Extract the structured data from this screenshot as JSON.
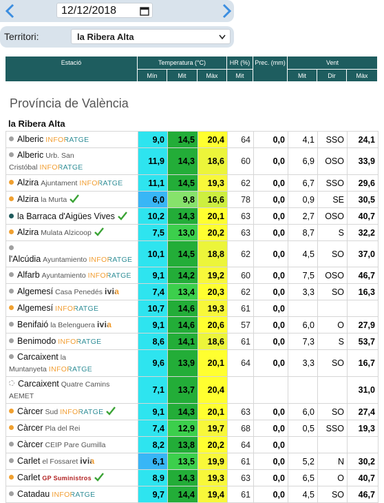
{
  "date": "12/12/2018",
  "territory": {
    "label": "Territori:",
    "selected": "la Ribera Alta"
  },
  "table": {
    "headers": {
      "station": "Estació",
      "temperature": "Temperatura (°C)",
      "humidity": "HR (%)",
      "precipitation": "Prec. (mm)",
      "wind": "Vent"
    },
    "subheaders": [
      "Mín",
      "Mit",
      "Màx",
      "Mit",
      "Mit",
      "Dir",
      "Màx"
    ],
    "province": "Província de València",
    "region": "la Ribera Alta",
    "rows": [
      {
        "dot": "#a0a0a0",
        "name": "Alberic",
        "brand": "INFORATGE",
        "min": "9,0",
        "mit": "14,5",
        "max": "20,4",
        "hr": "64",
        "prec": "0,0",
        "wind_mit": "4,1",
        "wind_dir": "SSO",
        "wind_max": "24,1"
      },
      {
        "dot": "#a0a0a0",
        "name": "Alberic",
        "sub": "Urb. San Cristóbal",
        "brand": "INFORATGE",
        "min": "11,9",
        "mit": "14,3",
        "max": "18,6",
        "hr": "60",
        "prec": "0,0",
        "wind_mit": "6,9",
        "wind_dir": "OSO",
        "wind_max": "33,9"
      },
      {
        "dot": "#f0a030",
        "name": "Alzira",
        "sub": "Ajuntament",
        "brand": "INFORATGE",
        "min": "11,1",
        "mit": "14,5",
        "max": "19,3",
        "hr": "62",
        "prec": "0,0",
        "wind_mit": "6,7",
        "wind_dir": "SSO",
        "wind_max": "29,6"
      },
      {
        "dot": "#f0a030",
        "name": "Alzira",
        "sub": "la Murta",
        "verified": true,
        "min": "6,0",
        "mit": "9,8",
        "max": "16,6",
        "hr": "78",
        "prec": "0,0",
        "wind_mit": "0,9",
        "wind_dir": "SE",
        "wind_max": "30,5"
      },
      {
        "dot": "#1f5a5c",
        "name": "la Barraca d'Aigües Vives",
        "verified": true,
        "min": "10,2",
        "mit": "14,3",
        "max": "20,1",
        "hr": "63",
        "prec": "0,0",
        "wind_mit": "2,7",
        "wind_dir": "OSO",
        "wind_max": "40,7"
      },
      {
        "dot": "#f0a030",
        "name": "Alzira",
        "sub": "Mulata Alzicoop",
        "verified": true,
        "min": "7,5",
        "mit": "13,0",
        "max": "20,2",
        "hr": "63",
        "prec": "0,0",
        "wind_mit": "8,7",
        "wind_dir": "S",
        "wind_max": "32,2"
      },
      {
        "dot": "#a0a0a0",
        "name": "l'Alcúdia",
        "sub": "Ayuntamiento",
        "brand": "INFORATGE",
        "min": "10,1",
        "mit": "14,5",
        "max": "18,8",
        "hr": "62",
        "prec": "0,0",
        "wind_mit": "4,5",
        "wind_dir": "SO",
        "wind_max": "37,0"
      },
      {
        "dot": "#a0a0a0",
        "name": "Alfarb",
        "sub": "Ayuntamiento",
        "brand": "INFORATGE",
        "min": "9,1",
        "mit": "14,2",
        "max": "19,2",
        "hr": "60",
        "prec": "0,0",
        "wind_mit": "7,5",
        "wind_dir": "OSO",
        "wind_max": "46,7"
      },
      {
        "dot": "#a0a0a0",
        "name": "Algemesí",
        "sub": "Casa Penedés",
        "brand": "ivia",
        "min": "7,4",
        "mit": "13,4",
        "max": "20,3",
        "hr": "62",
        "prec": "0,0",
        "wind_mit": "3,3",
        "wind_dir": "SO",
        "wind_max": "16,3"
      },
      {
        "dot": "#f0a030",
        "name": "Algemesí",
        "brand": "INFORATGE",
        "min": "10,7",
        "mit": "14,6",
        "max": "19,3",
        "hr": "61",
        "prec": "0,0"
      },
      {
        "dot": "#a0a0a0",
        "name": "Benifaió",
        "sub": "la Belenguera",
        "brand": "ivia",
        "min": "9,1",
        "mit": "14,6",
        "max": "20,6",
        "hr": "57",
        "prec": "0,0",
        "wind_mit": "6,0",
        "wind_dir": "O",
        "wind_max": "27,9"
      },
      {
        "dot": "#a0a0a0",
        "name": "Benimodo",
        "brand": "INFORATGE",
        "min": "8,6",
        "mit": "14,1",
        "max": "18,6",
        "hr": "61",
        "prec": "0,0",
        "wind_mit": "7,3",
        "wind_dir": "S",
        "wind_max": "53,7"
      },
      {
        "dot": "#a0a0a0",
        "name": "Carcaixent",
        "sub": "la Muntanyeta",
        "brand": "INFORATGE",
        "min": "9,6",
        "mit": "13,9",
        "max": "20,1",
        "hr": "64",
        "prec": "0,0",
        "wind_mit": "3,3",
        "wind_dir": "SO",
        "wind_max": "16,7"
      },
      {
        "dot": "none",
        "name": "Carcaixent",
        "sub": "Quatre Camins AEMET",
        "min": "7,1",
        "mit": "13,7",
        "max": "20,4",
        "wind_max": "31,0"
      },
      {
        "dot": "#f0a030",
        "name": "Càrcer",
        "sub": "Sud",
        "brand": "INFORATGE",
        "verified": true,
        "min": "9,1",
        "mit": "14,3",
        "max": "20,1",
        "hr": "63",
        "prec": "0,0",
        "wind_mit": "6,0",
        "wind_dir": "SO",
        "wind_max": "27,4"
      },
      {
        "dot": "#f0a030",
        "name": "Càrcer",
        "sub": "Pla del Rei",
        "min": "7,4",
        "mit": "12,9",
        "max": "19,7",
        "hr": "68",
        "prec": "0,0",
        "wind_mit": "0,5",
        "wind_dir": "SSO",
        "wind_max": "19,3"
      },
      {
        "dot": "#a0a0a0",
        "name": "Càrcer",
        "sub": "CEIP Pare Gumilla",
        "min": "8,2",
        "mit": "13,8",
        "max": "20,2",
        "hr": "64",
        "prec": "0,0"
      },
      {
        "dot": "#a0a0a0",
        "name": "Carlet",
        "sub": "el Fossaret",
        "brand": "ivia",
        "min": "6,1",
        "mit": "13,5",
        "max": "19,9",
        "hr": "61",
        "prec": "0,0",
        "wind_mit": "5,2",
        "wind_dir": "N",
        "wind_max": "30,2"
      },
      {
        "dot": "#f0a030",
        "name": "Carlet",
        "brand": "GP Suministros",
        "verified": true,
        "min": "8,9",
        "mit": "14,3",
        "max": "19,3",
        "hr": "63",
        "prec": "0,0",
        "wind_mit": "6,5",
        "wind_dir": "O",
        "wind_max": "40,7"
      },
      {
        "dot": "#a0a0a0",
        "name": "Catadau",
        "brand": "INFORATGE",
        "min": "9,7",
        "mit": "14,4",
        "max": "19,4",
        "hr": "61",
        "prec": "0,0",
        "wind_mit": "4,5",
        "wind_dir": "SO",
        "wind_max": "46,7"
      }
    ]
  }
}
